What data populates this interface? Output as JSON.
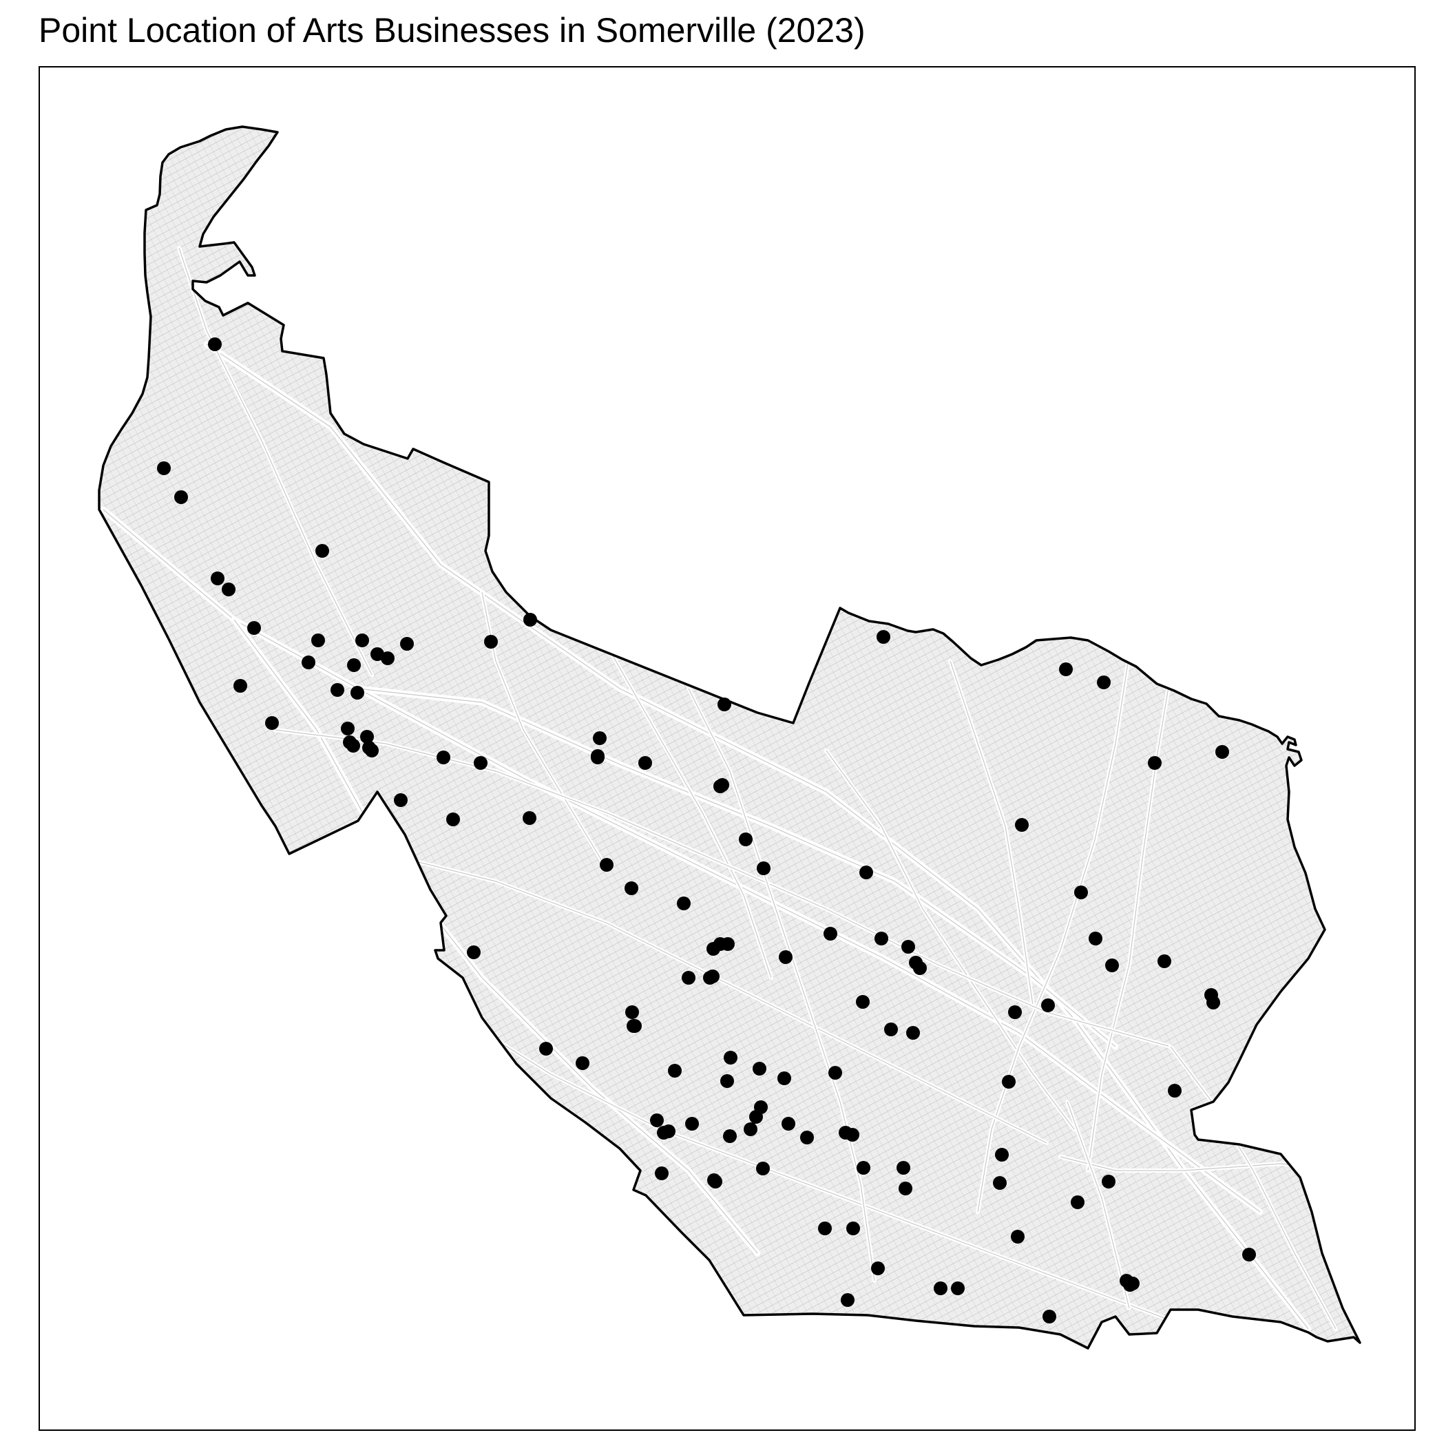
{
  "map": {
    "title": "Point Location of Arts Businesses in Somerville (2023)",
    "boundary_color": "#000000",
    "parcel_color": "#b8b8b8",
    "street_color": "#c9c9c9",
    "point_color": "#000000",
    "background_color": "#ffffff",
    "frame_color": "#000000",
    "point_layer_label": "arts-business-locations",
    "basemap_layer_label": "parcels-and-streets"
  }
}
